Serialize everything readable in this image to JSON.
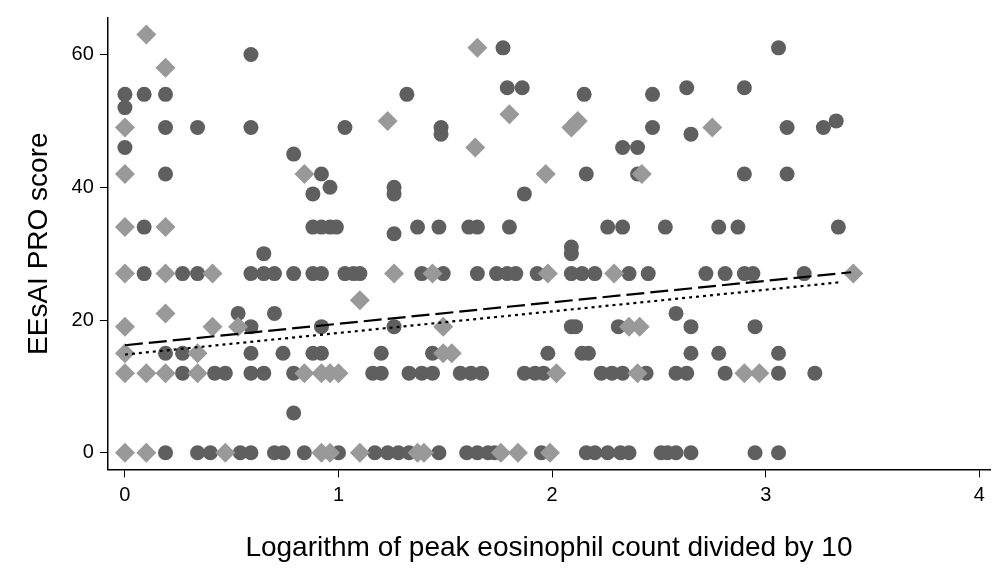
{
  "chart_data": {
    "type": "scatter",
    "xlabel": "Logarithm of peak eosinophil count divided by 10",
    "ylabel": "EEsAI PRO score",
    "xlim": [
      -0.08,
      4.05
    ],
    "ylim": [
      -2.5,
      65.5
    ],
    "xticks": [
      0,
      1,
      2,
      3,
      4
    ],
    "yticks": [
      0,
      20,
      40,
      60
    ],
    "grid": false,
    "legend": false,
    "series": [
      {
        "marker": "circle",
        "color": "#5f5f5f",
        "x": [
          0,
          0.09,
          0.19,
          0,
          0.59,
          0.19,
          0.34,
          0.59,
          1.03,
          0,
          0.79,
          0.19,
          0.92,
          0.96,
          0.88,
          0.09,
          0.88,
          0.92,
          0.96,
          0.99,
          0.65,
          0.09,
          0.27,
          0.34,
          0.59,
          0.65,
          0.7,
          0.79,
          0.88,
          0.92,
          1.03,
          0.53,
          0.7,
          0.59,
          0.92,
          0.19,
          0.27,
          0.59,
          0.74,
          0.88,
          0.92,
          0.27,
          0.42,
          0.47,
          0.59,
          0.65,
          0.79,
          0.79,
          0.19,
          0.34,
          0.4,
          0.54,
          0.59,
          0.7,
          0.74,
          0.84,
          1.0,
          1.77,
          1.79,
          1.86,
          1.32,
          1.48,
          1.48,
          1.26,
          1.26,
          1.87,
          1.26,
          1.37,
          1.47,
          1.61,
          1.65,
          1.8,
          2.09,
          2.09,
          1.07,
          1.1,
          1.39,
          1.49,
          1.65,
          1.74,
          1.79,
          1.83,
          1.93,
          2.09,
          1.26,
          2.09,
          1.2,
          1.44,
          1.98,
          1.16,
          1.2,
          1.33,
          1.39,
          1.44,
          1.57,
          1.62,
          1.67,
          1.87,
          1.92,
          1.96,
          1.17,
          1.23,
          1.28,
          1.33,
          1.47,
          1.6,
          1.65,
          1.7,
          1.73,
          1.95,
          3.06,
          2.15,
          2.47,
          2.63,
          2.9,
          2.47,
          3.1,
          2.65,
          2.33,
          2.4,
          2.16,
          2.4,
          2.9,
          3.1,
          2.26,
          2.33,
          2.53,
          2.78,
          2.87,
          2.14,
          2.2,
          2.36,
          2.45,
          2.72,
          2.81,
          2.9,
          2.94,
          2.58,
          2.11,
          2.31,
          2.65,
          2.95,
          2.14,
          2.17,
          2.65,
          2.78,
          3.06,
          2.23,
          2.28,
          2.33,
          2.44,
          2.58,
          2.63,
          2.81,
          3.06,
          2.16,
          2.2,
          2.26,
          2.32,
          2.36,
          2.51,
          2.54,
          2.58,
          2.65,
          2.95,
          3.06,
          3.27,
          3.33,
          3.34,
          3.18,
          3.23
        ],
        "values": [
          54,
          54,
          54,
          52,
          60,
          49,
          49,
          49,
          49,
          46,
          45,
          42,
          42,
          40,
          39,
          34,
          34,
          34,
          34,
          34,
          30,
          27,
          27,
          27,
          27,
          27,
          27,
          27,
          27,
          27,
          27,
          21,
          21,
          19,
          19,
          15,
          15,
          15,
          15,
          15,
          15,
          12,
          12,
          12,
          12,
          12,
          12,
          6,
          0,
          0,
          0,
          0,
          0,
          0,
          0,
          0,
          0,
          61,
          55,
          55,
          54,
          49,
          48,
          40,
          39,
          39,
          33,
          34,
          34,
          34,
          34,
          34,
          31,
          30,
          27,
          27,
          27,
          27,
          27,
          27,
          27,
          27,
          27,
          27,
          19,
          19,
          15,
          15,
          15,
          12,
          12,
          12,
          12,
          12,
          12,
          12,
          12,
          12,
          12,
          12,
          0,
          0,
          0,
          0,
          0,
          0,
          0,
          0,
          0,
          0,
          61,
          54,
          54,
          55,
          55,
          49,
          49,
          48,
          46,
          46,
          42,
          42,
          42,
          42,
          34,
          34,
          34,
          34,
          34,
          27,
          27,
          27,
          27,
          27,
          27,
          27,
          27,
          21,
          19,
          19,
          19,
          19,
          15,
          15,
          15,
          15,
          15,
          12,
          12,
          12,
          12,
          12,
          12,
          12,
          12,
          0,
          0,
          0,
          0,
          0,
          0,
          0,
          0,
          0,
          0,
          0,
          49,
          50,
          34,
          27,
          12
        ]
      },
      {
        "marker": "diamond",
        "color": "#999999",
        "x": [
          0,
          0.1,
          0.47,
          0.92,
          0.96,
          1.1,
          1.37,
          1.4,
          1.76,
          1.84,
          1.99,
          0,
          0.1,
          0.19,
          0.34,
          0.84,
          0.92,
          0.96,
          1.0,
          2.02,
          2.4,
          2.9,
          2.97,
          0,
          0.34,
          1.49,
          1.53,
          0,
          0.41,
          0.53,
          1.49,
          2.36,
          2.41,
          0.19,
          1.1,
          0,
          0.19,
          0.41,
          1.26,
          1.44,
          1.98,
          2.29,
          3.41,
          0,
          0.19,
          0,
          0.84,
          1.97,
          2.42,
          1.64,
          0,
          2.09,
          2.75,
          1.23,
          2.12,
          1.8,
          0.19,
          1.65,
          0.1
        ],
        "values": [
          0,
          0,
          0,
          0,
          0,
          0,
          0,
          0,
          0,
          0,
          0,
          12,
          12,
          12,
          12,
          12,
          12,
          12,
          12,
          12,
          12,
          12,
          12,
          15,
          15,
          15,
          15,
          19,
          19,
          19,
          19,
          19,
          19,
          21,
          23,
          27,
          27,
          27,
          27,
          27,
          27,
          27,
          27,
          34,
          34,
          42,
          42,
          42,
          42,
          46,
          49,
          49,
          49,
          50,
          50,
          51,
          58,
          61,
          63
        ]
      },
      {
        "type": "line",
        "line_style": "dashed",
        "color": "#000000",
        "x": [
          0,
          3.4
        ],
        "values": [
          16.2,
          27.2
        ]
      },
      {
        "type": "line",
        "line_style": "dotted",
        "color": "#000000",
        "x": [
          0,
          3.35
        ],
        "values": [
          14.8,
          25.7
        ]
      }
    ]
  }
}
